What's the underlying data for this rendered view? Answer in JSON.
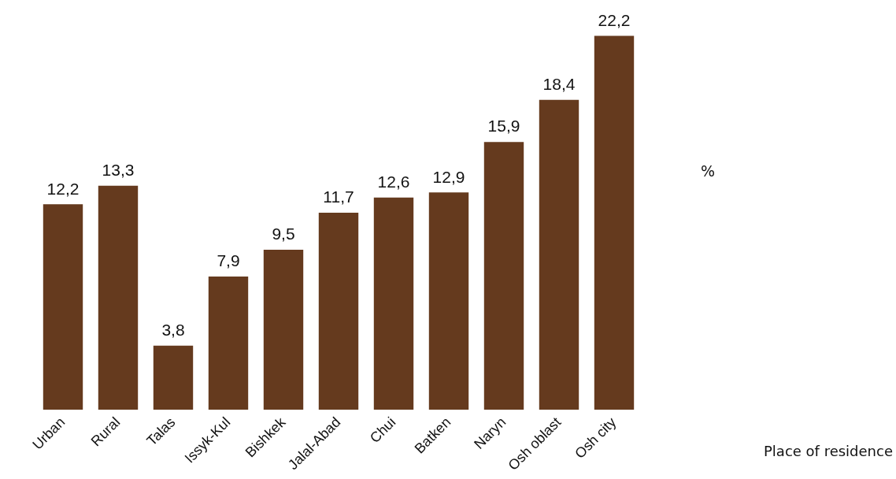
{
  "chart_data": {
    "type": "bar",
    "annotations": [
      "%",
      "Place of residence"
    ],
    "categories": [
      "Urban",
      "Rural",
      "Talas",
      "Issyk-Kul",
      "Bishkek",
      "Jalal-Abad",
      "Chui",
      "Batken",
      "Naryn",
      "Osh oblast",
      "Osh city"
    ],
    "values": [
      12.2,
      13.3,
      3.8,
      7.9,
      9.5,
      11.7,
      12.6,
      12.9,
      15.9,
      18.4,
      22.2
    ],
    "value_labels": [
      "12,2",
      "13,3",
      "3,8",
      "7,9",
      "9,5",
      "11,7",
      "12,6",
      "12,9",
      "15,9",
      "18,4",
      "22,2"
    ],
    "color": "#653a1e",
    "grid": false,
    "legend": false,
    "tick_labels": "x"
  }
}
